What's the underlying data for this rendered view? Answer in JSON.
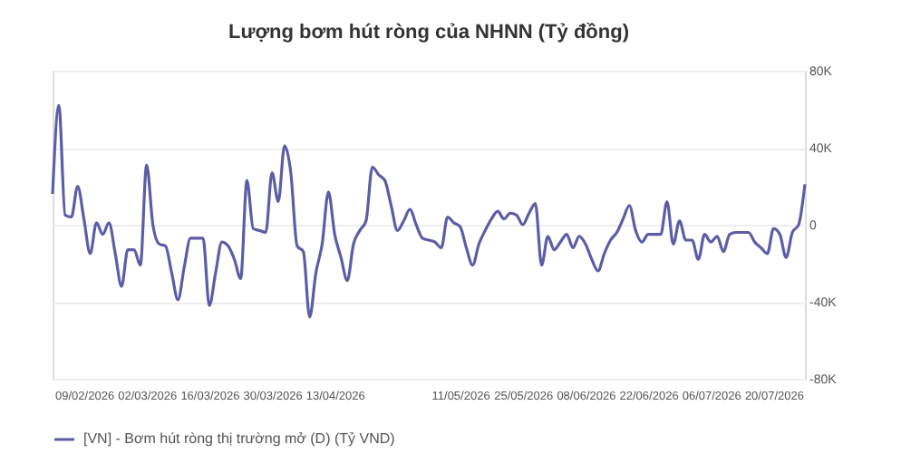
{
  "chart_data": {
    "type": "line",
    "title": "Lượng bơm hút ròng của NHNN (Tỷ đồng)",
    "categories": [
      null,
      null,
      null,
      null,
      null,
      "09/02/2026",
      null,
      null,
      null,
      null,
      null,
      null,
      null,
      null,
      null,
      "02/03/2026",
      null,
      null,
      null,
      null,
      null,
      null,
      null,
      null,
      null,
      "16/03/2026",
      null,
      null,
      null,
      null,
      null,
      null,
      null,
      null,
      null,
      "30/03/2026",
      null,
      null,
      null,
      null,
      null,
      null,
      null,
      null,
      null,
      "13/04/2026",
      null,
      null,
      null,
      null,
      null,
      null,
      null,
      null,
      null,
      null,
      null,
      null,
      null,
      null,
      null,
      null,
      null,
      null,
      null,
      "11/05/2026",
      null,
      null,
      null,
      null,
      null,
      null,
      null,
      null,
      null,
      "25/05/2026",
      null,
      null,
      null,
      null,
      null,
      null,
      null,
      null,
      null,
      "08/06/2026",
      null,
      null,
      null,
      null,
      null,
      null,
      null,
      null,
      null,
      "22/06/2026",
      null,
      null,
      null,
      null,
      null,
      null,
      null,
      null,
      null,
      "06/07/2026",
      null,
      null,
      null,
      null,
      null,
      null,
      null,
      null,
      null,
      "20/07/2026",
      null,
      null,
      null,
      null,
      null
    ],
    "ylim": [
      -80000,
      80000
    ],
    "yticks": [
      {
        "value": -80000,
        "label": "-80K"
      },
      {
        "value": -40000,
        "label": "-40K"
      },
      0,
      {
        "value": 40000,
        "label": "40K"
      },
      {
        "value": 80000,
        "label": "80K"
      }
    ],
    "grid": "y",
    "legend": "bottom",
    "marker": "none",
    "line_style": "solid",
    "series": [
      {
        "name": "[VN] - Bơm hút ròng thị trường mở (D) (Tỷ VND)",
        "color": "#5b5ea6",
        "values": [
          16000,
          62000,
          5000,
          4000,
          20000,
          3000,
          -15000,
          1000,
          -5000,
          1000,
          -15000,
          -32000,
          -13000,
          -13000,
          -21000,
          31000,
          0,
          -10000,
          -11000,
          -25000,
          -39000,
          -22000,
          -7000,
          -7000,
          -7000,
          -42000,
          -25000,
          -9000,
          -11000,
          -18000,
          -28000,
          23000,
          -2000,
          -3000,
          -4000,
          27000,
          12000,
          41000,
          27000,
          -11000,
          -14000,
          -48000,
          -25000,
          -10000,
          17000,
          -5000,
          -17000,
          -29000,
          -10000,
          -3000,
          2000,
          30000,
          26000,
          23000,
          10000,
          -3000,
          2000,
          8000,
          0,
          -7000,
          -8000,
          -9000,
          -12000,
          4000,
          1000,
          -1000,
          -12000,
          -21000,
          -10000,
          -3000,
          3000,
          7000,
          3000,
          6000,
          5000,
          0,
          6000,
          11000,
          -21000,
          -6000,
          -13000,
          -9000,
          -5000,
          -12000,
          -6000,
          -10000,
          -18000,
          -24000,
          -15000,
          -8000,
          -4000,
          3000,
          10000,
          -3000,
          -9000,
          -5000,
          -5000,
          -5000,
          12000,
          -10000,
          2000,
          -8000,
          -8000,
          -18000,
          -5000,
          -9000,
          -6000,
          -14000,
          -5000,
          -4000,
          -4000,
          -4000,
          -9000,
          -12000,
          -15000,
          -2000,
          -5000,
          -17000,
          -4000,
          0,
          21000
        ]
      }
    ]
  }
}
